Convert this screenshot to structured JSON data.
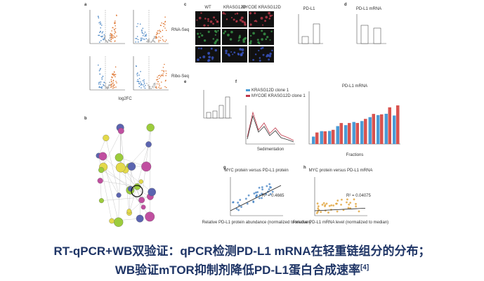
{
  "figure": {
    "panels": [
      {
        "letter": "a",
        "labels": [
          "RNA-Seq",
          "Ribo-Seq"
        ],
        "xlabel": "log2FC"
      },
      {
        "letter": "b"
      },
      {
        "letter": "c",
        "columns": [
          "WT",
          "KRASG12D",
          "MYCOE KRASG12D"
        ],
        "chart_title": "PD-L1"
      },
      {
        "letter": "d",
        "title": "PD-L1 mRNA"
      },
      {
        "letter": "e"
      },
      {
        "letter": "f",
        "legend": [
          "KRASG12D clone 1",
          "MYCOE KRASG12D clone 1"
        ],
        "left_xlabel": "Sedimentation",
        "title": "PD-L1 mRNA",
        "xlabel": "Fractions"
      },
      {
        "letter": "g",
        "title": "MYC protein versus PD-L1 protein",
        "stat": "R² = 0.4665",
        "xlabel": "Relative PD-L1 protein abundance (normalized to median)"
      },
      {
        "letter": "h",
        "title": "MYC protein versus PD-L1 mRNA",
        "stat": "R² = 0.04075",
        "xlabel": "Relative PD-L1 mRNA level (normalized to median)"
      }
    ]
  },
  "caption": {
    "line1": "RT-qPCR+WB双验证：qPCR检测PD-L1 mRNA在轻重链组分的分布；",
    "line2": "WB验证mTOR抑制剂降低PD-L1蛋白合成速率",
    "ref": "[4]"
  }
}
